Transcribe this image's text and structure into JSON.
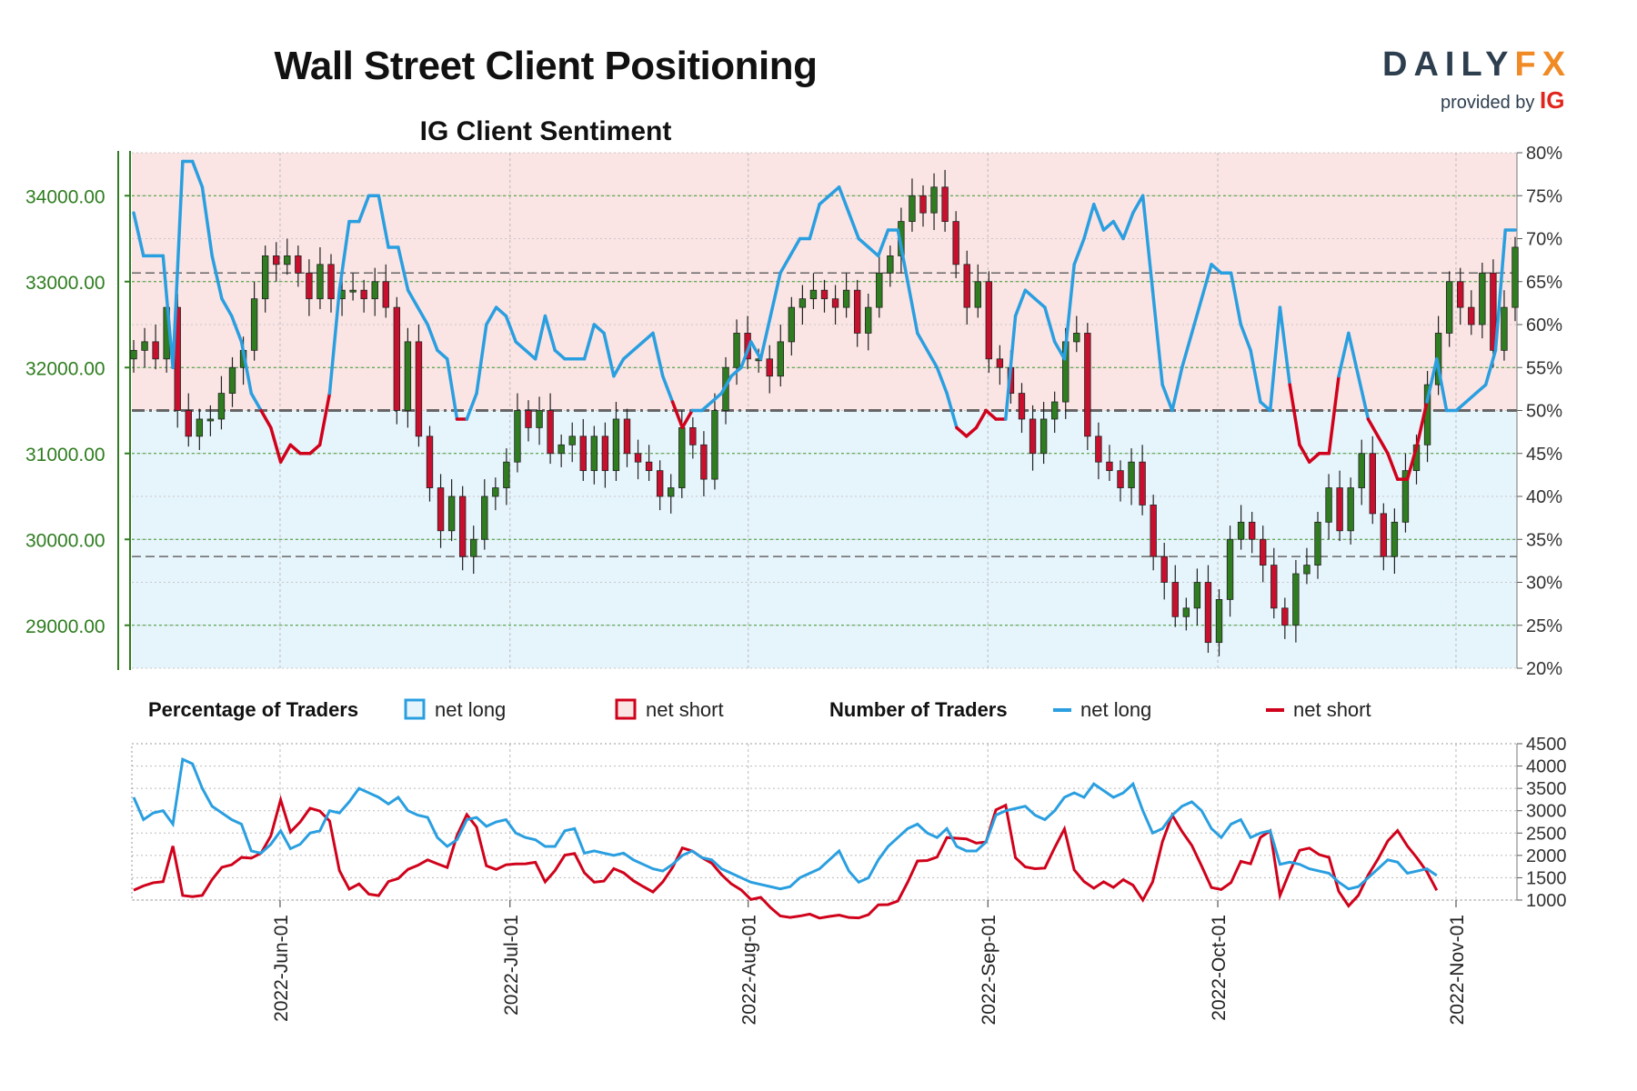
{
  "header": {
    "title": "Wall Street Client Positioning",
    "subtitle": "IG Client Sentiment",
    "logo_main_a": "DAILY",
    "logo_main_b": "FX",
    "logo_sub": "provided by",
    "logo_ig": "IG"
  },
  "legend": {
    "pct_title": "Percentage of Traders",
    "pct_long": "net long",
    "pct_short": "net short",
    "num_title": "Number of Traders",
    "num_long": "net long",
    "num_short": "net short"
  },
  "colors": {
    "long": "#2a9fe0",
    "short": "#d0021b",
    "long_fill": "#e6f4fc",
    "short_fill": "#fbe4e4",
    "bull_candle": "#2f7d20",
    "bear_candle": "#c8102e",
    "price_axis": "#2f7d20"
  },
  "chart_data": [
    {
      "type": "candlestick+line",
      "left_axis": {
        "ticks": [
          "29000.00",
          "30000.00",
          "31000.00",
          "32000.00",
          "33000.00",
          "34000.00"
        ],
        "ylim": [
          28500,
          34500
        ]
      },
      "right_axis": {
        "ticks": [
          "20%",
          "25%",
          "30%",
          "35%",
          "40%",
          "45%",
          "50%",
          "55%",
          "60%",
          "65%",
          "70%",
          "75%",
          "80%"
        ],
        "ylim": [
          20,
          80
        ]
      },
      "x_axis": {
        "ticks": [
          "2022-Jun-01",
          "2022-Jul-01",
          "2022-Aug-01",
          "2022-Sep-01",
          "2022-Oct-01",
          "2022-Nov-01"
        ]
      },
      "reference_lines": {
        "percent_mid": 50,
        "price_levels": [
          33100,
          29800
        ]
      },
      "close": [
        32200,
        32300,
        32100,
        32700,
        31500,
        31200,
        31400,
        31400,
        31700,
        32000,
        32200,
        32800,
        33300,
        33200,
        33300,
        33100,
        32800,
        33200,
        32800,
        32900,
        32900,
        32800,
        33000,
        32700,
        31500,
        32300,
        31200,
        30600,
        30100,
        30500,
        29800,
        30000,
        30500,
        30600,
        30900,
        31500,
        31300,
        31500,
        31000,
        31100,
        31200,
        30800,
        31200,
        30800,
        31400,
        31000,
        30900,
        30800,
        30500,
        30600,
        31300,
        31100,
        30700,
        31500,
        32000,
        32400,
        32100,
        32100,
        31900,
        32300,
        32700,
        32800,
        32900,
        32800,
        32700,
        32900,
        32400,
        32700,
        33100,
        33300,
        33700,
        34000,
        33800,
        34100,
        33700,
        33200,
        32700,
        33000,
        32100,
        32000,
        31700,
        31400,
        31000,
        31400,
        31600,
        32300,
        32400,
        31200,
        30900,
        30800,
        30600,
        30900,
        30400,
        29800,
        29500,
        29100,
        29200,
        29500,
        28800,
        29300,
        30000,
        30200,
        30000,
        29700,
        29200,
        29000,
        29600,
        29700,
        30200,
        30600,
        30100,
        30600,
        31000,
        30300,
        29800,
        30200,
        30800,
        31100,
        31800,
        32400,
        33000,
        32700,
        32500,
        33100,
        32200,
        32700,
        33400
      ],
      "net_long_pct": [
        73,
        68,
        68,
        68,
        55,
        79,
        79,
        76,
        68,
        63,
        61,
        58,
        52,
        50,
        48,
        44,
        46,
        45,
        45,
        46,
        52,
        64,
        72,
        72,
        75,
        75,
        69,
        69,
        64,
        62,
        60,
        57,
        56,
        49,
        49,
        52,
        60,
        62,
        61,
        58,
        57,
        56,
        61,
        57,
        56,
        56,
        56,
        60,
        59,
        54,
        56,
        57,
        58,
        59,
        54,
        51,
        48,
        50,
        50,
        51,
        52,
        54,
        55,
        58,
        56,
        61,
        66,
        68,
        70,
        70,
        74,
        75,
        76,
        73,
        70,
        69,
        68,
        71,
        71,
        65,
        59,
        57,
        55,
        52,
        48,
        47,
        48,
        50,
        49,
        49,
        61,
        64,
        63,
        62,
        58,
        56,
        67,
        70,
        74,
        71,
        72,
        70,
        73,
        75,
        64,
        53,
        50,
        55,
        59,
        63,
        67,
        66,
        66,
        60,
        57,
        51,
        50,
        62,
        53,
        46,
        44,
        45,
        45,
        54,
        59,
        54,
        49,
        47,
        45,
        42,
        42,
        46,
        51,
        56,
        50,
        50,
        51,
        52,
        53,
        57,
        71,
        71
      ],
      "net_long_count": [
        3300,
        2800,
        2950,
        3000,
        2700,
        4150,
        4050,
        3500,
        3100,
        2950,
        2800,
        2700,
        2100,
        2050,
        2250,
        2550,
        2150,
        2250,
        2500,
        2550,
        3000,
        2950,
        3200,
        3500,
        3400,
        3300,
        3150,
        3300,
        3000,
        2900,
        2850,
        2400,
        2200,
        2350,
        2800,
        2850,
        2650,
        2750,
        2800,
        2500,
        2400,
        2350,
        2200,
        2200,
        2550,
        2600,
        2050,
        2100,
        2050,
        2000,
        2050,
        1900,
        1800,
        1700,
        1650,
        1800,
        2000,
        2100,
        1950,
        1900,
        1700,
        1600,
        1500,
        1400,
        1350,
        1300,
        1250,
        1300,
        1500,
        1600,
        1700,
        1900,
        2100,
        1650,
        1400,
        1500,
        1900,
        2200,
        2400,
        2600,
        2700,
        2500,
        2400,
        2600,
        2200,
        2100,
        2100,
        2300,
        2900,
        3000,
        3050,
        3100,
        2900,
        2800,
        3000,
        3300,
        3400,
        3300,
        3600,
        3450,
        3300,
        3400,
        3600,
        3000,
        2500,
        2600,
        2900,
        3100,
        3200,
        3000,
        2600,
        2400,
        2700,
        2800,
        2400,
        2500,
        2550,
        1800,
        1850,
        1800,
        1700,
        1650,
        1600,
        1400,
        1250,
        1300,
        1500,
        1700,
        1900,
        1850,
        1600,
        1650,
        1700,
        1550
      ]
    }
  ]
}
